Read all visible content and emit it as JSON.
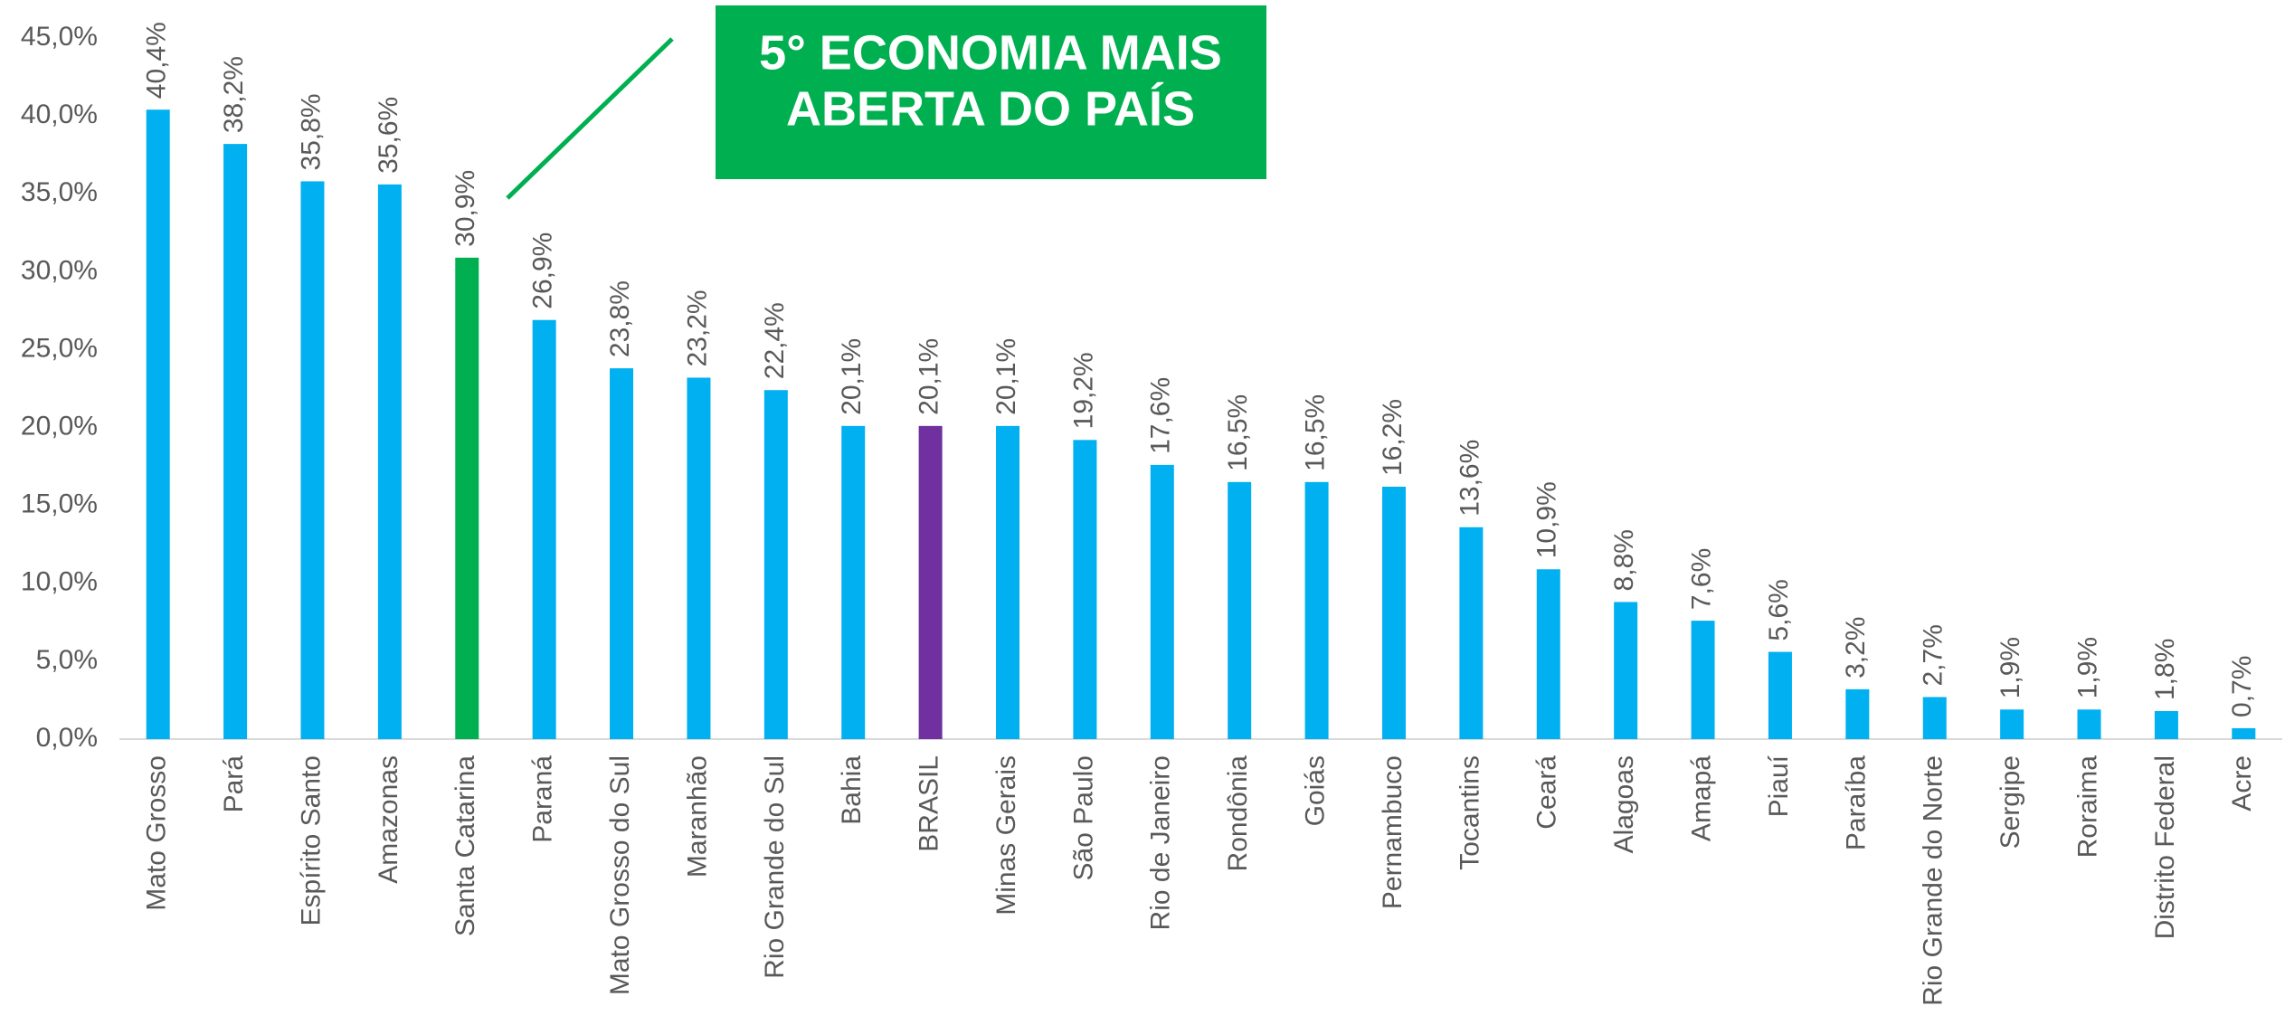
{
  "chart_data": {
    "type": "bar",
    "categories": [
      "Mato Grosso",
      "Pará",
      "Espírito Santo",
      "Amazonas",
      "Santa Catarina",
      "Paraná",
      "Mato Grosso do Sul",
      "Maranhão",
      "Rio Grande do Sul",
      "Bahia",
      "BRASIL",
      "Minas Gerais",
      "São Paulo",
      "Rio de Janeiro",
      "Rondônia",
      "Goiás",
      "Pernambuco",
      "Tocantins",
      "Ceará",
      "Alagoas",
      "Amapá",
      "Piauí",
      "Paraíba",
      "Rio Grande do Norte",
      "Sergipe",
      "Roraima",
      "Distrito Federal",
      "Acre"
    ],
    "values": [
      40.4,
      38.2,
      35.8,
      35.6,
      30.9,
      26.9,
      23.8,
      23.2,
      22.4,
      20.1,
      20.1,
      20.1,
      19.2,
      17.6,
      16.5,
      16.5,
      16.2,
      13.6,
      10.9,
      8.8,
      7.6,
      5.6,
      3.2,
      2.7,
      1.9,
      1.9,
      1.8,
      0.7
    ],
    "value_labels": [
      "40,4%",
      "38,2%",
      "35,8%",
      "35,6%",
      "30,9%",
      "26,9%",
      "23,8%",
      "23,2%",
      "22,4%",
      "20,1%",
      "20,1%",
      "20,1%",
      "19,2%",
      "17,6%",
      "16,5%",
      "16,5%",
      "16,2%",
      "13,6%",
      "10,9%",
      "8,8%",
      "7,6%",
      "5,6%",
      "3,2%",
      "2,7%",
      "1,9%",
      "1,9%",
      "1,8%",
      "0,7%"
    ],
    "colors": [
      "#00b0f0",
      "#00b0f0",
      "#00b0f0",
      "#00b0f0",
      "#00b050",
      "#00b0f0",
      "#00b0f0",
      "#00b0f0",
      "#00b0f0",
      "#00b0f0",
      "#7030a0",
      "#00b0f0",
      "#00b0f0",
      "#00b0f0",
      "#00b0f0",
      "#00b0f0",
      "#00b0f0",
      "#00b0f0",
      "#00b0f0",
      "#00b0f0",
      "#00b0f0",
      "#00b0f0",
      "#00b0f0",
      "#00b0f0",
      "#00b0f0",
      "#00b0f0",
      "#00b0f0",
      "#00b0f0"
    ],
    "ylim": [
      0,
      45
    ],
    "yticks": [
      {
        "value": 0,
        "label": "0,0%"
      },
      {
        "value": 5,
        "label": "5,0%"
      },
      {
        "value": 10,
        "label": "10,0%"
      },
      {
        "value": 15,
        "label": "15,0%"
      },
      {
        "value": 20,
        "label": "20,0%"
      },
      {
        "value": 25,
        "label": "25,0%"
      },
      {
        "value": 30,
        "label": "30,0%"
      },
      {
        "value": 35,
        "label": "35,0%"
      },
      {
        "value": 40,
        "label": "40,0%"
      },
      {
        "value": 45,
        "label": "45,0%"
      }
    ],
    "grid": false,
    "annotation": {
      "lines": [
        "5° ECONOMIA MAIS",
        "ABERTA DO PAÍS"
      ],
      "color": "#00b050"
    }
  }
}
